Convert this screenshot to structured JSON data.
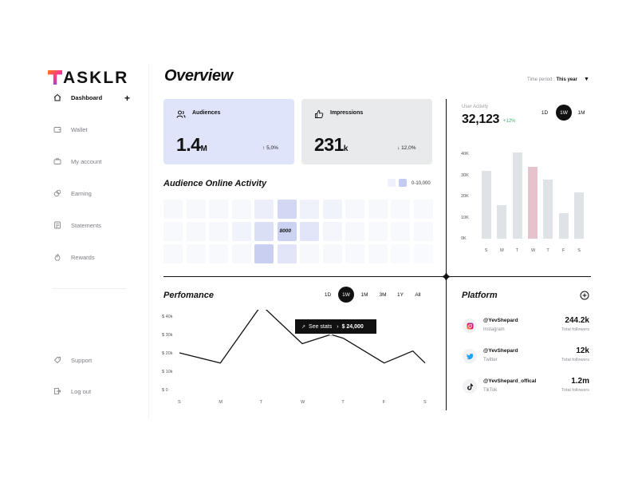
{
  "brand": {
    "logo_text": "ASKLR"
  },
  "sidebar": {
    "items": [
      {
        "label": "Dashboard",
        "icon": "home-icon"
      },
      {
        "label": "Wallet",
        "icon": "wallet-icon"
      },
      {
        "label": "My account",
        "icon": "briefcase-icon"
      },
      {
        "label": "Earning",
        "icon": "coins-icon"
      },
      {
        "label": "Statements",
        "icon": "document-icon"
      },
      {
        "label": "Rewards",
        "icon": "flame-icon"
      }
    ],
    "bottom": [
      {
        "label": "Support",
        "icon": "tag-icon"
      },
      {
        "label": "Log out",
        "icon": "logout-icon"
      }
    ]
  },
  "header": {
    "title": "Overview",
    "time_period_label": "Time period :",
    "time_period_value": "This year"
  },
  "cards": {
    "audiences": {
      "label": "Audiences",
      "value": "1.4",
      "unit": "M",
      "delta": "5,0%",
      "direction": "up",
      "color": "#dfe4fb"
    },
    "impressions": {
      "label": "Impressions",
      "value": "231",
      "unit": "k",
      "delta": "12,0%",
      "direction": "down",
      "color": "#e9eaec"
    }
  },
  "audience_activity": {
    "title": "Audience Online Activity",
    "legend": "0-10,000",
    "highlight_label": "8000",
    "grid": [
      [
        0.05,
        0.05,
        0.05,
        0.05,
        0.2,
        0.55,
        0.15,
        0.12,
        0.05,
        0.05,
        0.03,
        0.03
      ],
      [
        0.03,
        0.05,
        0.05,
        0.12,
        0.45,
        0.65,
        0.35,
        0.08,
        0.05,
        0.03,
        0.03,
        0.03
      ],
      [
        0.03,
        0.03,
        0.03,
        0.05,
        0.7,
        0.35,
        0.05,
        0.05,
        0.03,
        0.03,
        0.02,
        0.02
      ]
    ]
  },
  "user_activity": {
    "label": "User Activity",
    "value": "32,123",
    "change": "+12%",
    "ranges": [
      "1D",
      "1W",
      "1M"
    ],
    "selected_range": "1W",
    "chart_data": {
      "type": "bar",
      "categories": [
        "S",
        "M",
        "T",
        "W",
        "T",
        "F",
        "S"
      ],
      "values": [
        32,
        16,
        41,
        34,
        28,
        12,
        22
      ],
      "highlight_index": 3,
      "yticks": [
        "0K",
        "10K",
        "20K",
        "30K",
        "40K"
      ],
      "ylim": [
        0,
        45
      ]
    }
  },
  "performance": {
    "title": "Perfomance",
    "ranges": [
      "1D",
      "1W",
      "1M",
      "3M",
      "1Y",
      "All"
    ],
    "selected_range": "1W",
    "tooltip_label": "See stats",
    "tooltip_value": "$ 24,000",
    "chart_data": {
      "type": "line",
      "categories": [
        "S",
        "M",
        "T",
        "W",
        "T",
        "F",
        "S"
      ],
      "points": [
        [
          0,
          20
        ],
        [
          1,
          14.5
        ],
        [
          2,
          46
        ],
        [
          3,
          25
        ],
        [
          3.7,
          30
        ],
        [
          4,
          28
        ],
        [
          5,
          14.5
        ],
        [
          5.7,
          21
        ],
        [
          6,
          14.5
        ]
      ],
      "highlight_index": 4,
      "yticks": [
        "$ 0",
        "$ 10k",
        "$ 20k",
        "$ 30k",
        "$ 40k"
      ],
      "ylim": [
        0,
        40
      ]
    }
  },
  "platform": {
    "title": "Platform",
    "items": [
      {
        "handle": "@YevShepard",
        "network": "Instagram",
        "count": "244.2k",
        "sub": "Total followers",
        "icon": "instagram-icon"
      },
      {
        "handle": "@YevShepard",
        "network": "Twitter",
        "count": "12k",
        "sub": "Total followers",
        "icon": "twitter-icon"
      },
      {
        "handle": "@YevShepard_offical",
        "network": "TikTok",
        "count": "1.2m",
        "sub": "Total followers",
        "icon": "tiktok-icon"
      }
    ]
  }
}
